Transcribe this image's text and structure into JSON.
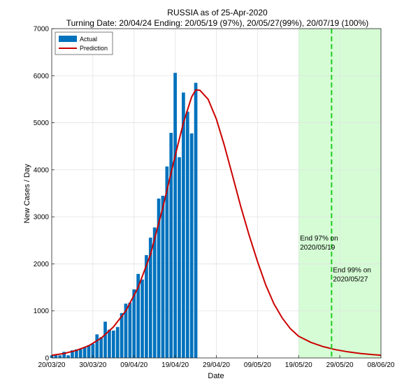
{
  "chart_data": {
    "type": "bar",
    "title": "RUSSIA as of 25-Apr-2020",
    "subtitle": "Turning Date: 20/04/24  Ending: 20/05/19 (97%), 20/05/27(99%), 20/07/19 (100%)",
    "xlabel": "Date",
    "ylabel": "New Cases / Day",
    "ylim": [
      0,
      7000
    ],
    "xlim": [
      "2020-03-20",
      "2020-06-08"
    ],
    "y_ticks": [
      "0",
      "1000",
      "2000",
      "3000",
      "4000",
      "5000",
      "6000",
      "7000"
    ],
    "x_ticks": [
      {
        "date": "2020-03-20",
        "label": "20/03/20"
      },
      {
        "date": "2020-03-30",
        "label": "30/03/20"
      },
      {
        "date": "2020-04-09",
        "label": "09/04/20"
      },
      {
        "date": "2020-04-19",
        "label": "19/04/20"
      },
      {
        "date": "2020-04-29",
        "label": "29/04/20"
      },
      {
        "date": "2020-05-09",
        "label": "09/05/20"
      },
      {
        "date": "2020-05-19",
        "label": "19/05/20"
      },
      {
        "date": "2020-05-29",
        "label": "29/05/20"
      },
      {
        "date": "2020-06-08",
        "label": "08/06/20"
      }
    ],
    "grid": true,
    "legend_position": "top-left",
    "actual": {
      "name": "Actual",
      "color": "#0072BD",
      "dates": [
        "2020-03-20",
        "2020-03-21",
        "2020-03-22",
        "2020-03-23",
        "2020-03-24",
        "2020-03-25",
        "2020-03-26",
        "2020-03-27",
        "2020-03-28",
        "2020-03-29",
        "2020-03-30",
        "2020-03-31",
        "2020-04-01",
        "2020-04-02",
        "2020-04-03",
        "2020-04-04",
        "2020-04-05",
        "2020-04-06",
        "2020-04-07",
        "2020-04-08",
        "2020-04-09",
        "2020-04-10",
        "2020-04-11",
        "2020-04-12",
        "2020-04-13",
        "2020-04-14",
        "2020-04-15",
        "2020-04-16",
        "2020-04-17",
        "2020-04-18",
        "2020-04-19",
        "2020-04-20",
        "2020-04-21",
        "2020-04-22",
        "2020-04-23",
        "2020-04-24"
      ],
      "values": [
        52,
        55,
        54,
        130,
        56,
        162,
        183,
        197,
        229,
        271,
        302,
        501,
        441,
        771,
        601,
        582,
        658,
        954,
        1154,
        1175,
        1459,
        1786,
        1667,
        2186,
        2558,
        2774,
        3388,
        3448,
        4070,
        4785,
        6060,
        4268,
        5642,
        5236,
        4774,
        5849
      ]
    },
    "prediction": {
      "name": "Prediction",
      "color": "#CC0000",
      "points": [
        [
          "2020-03-20",
          55
        ],
        [
          "2020-03-23",
          95
        ],
        [
          "2020-03-26",
          160
        ],
        [
          "2020-03-29",
          260
        ],
        [
          "2020-04-01",
          420
        ],
        [
          "2020-04-04",
          660
        ],
        [
          "2020-04-07",
          1000
        ],
        [
          "2020-04-10",
          1500
        ],
        [
          "2020-04-13",
          2200
        ],
        [
          "2020-04-16",
          3200
        ],
        [
          "2020-04-19",
          4300
        ],
        [
          "2020-04-21",
          5000
        ],
        [
          "2020-04-23",
          5550
        ],
        [
          "2020-04-24",
          5700
        ],
        [
          "2020-04-25",
          5690
        ],
        [
          "2020-04-27",
          5500
        ],
        [
          "2020-04-29",
          5080
        ],
        [
          "2020-05-01",
          4500
        ],
        [
          "2020-05-03",
          3850
        ],
        [
          "2020-05-05",
          3200
        ],
        [
          "2020-05-07",
          2600
        ],
        [
          "2020-05-09",
          2050
        ],
        [
          "2020-05-11",
          1550
        ],
        [
          "2020-05-13",
          1150
        ],
        [
          "2020-05-15",
          850
        ],
        [
          "2020-05-17",
          620
        ],
        [
          "2020-05-19",
          460
        ],
        [
          "2020-05-22",
          330
        ],
        [
          "2020-05-25",
          240
        ],
        [
          "2020-05-28",
          175
        ],
        [
          "2020-05-31",
          130
        ],
        [
          "2020-06-03",
          95
        ],
        [
          "2020-06-06",
          70
        ],
        [
          "2020-06-08",
          58
        ]
      ]
    },
    "shaded_region": {
      "from": "2020-05-19",
      "to": "2020-06-08",
      "color": "#d5fcd5"
    },
    "vlines": [
      {
        "date": "2020-05-27",
        "color": "#22cc22",
        "style": "dashed"
      }
    ],
    "annotations": [
      {
        "lines": [
          "End 97% on",
          "2020/05/19"
        ],
        "date": "2020-05-19",
        "value": 2500
      },
      {
        "lines": [
          "End 99% on",
          "2020/05/27"
        ],
        "date": "2020-05-27",
        "value": 1820
      }
    ]
  }
}
